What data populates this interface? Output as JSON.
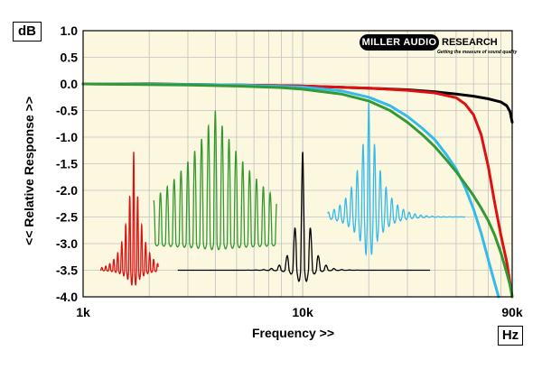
{
  "chart_data": {
    "type": "line",
    "title": "",
    "xlabel": "Frequency >>",
    "ylabel": "<< Relative Response >>",
    "x_unit": "Hz",
    "y_unit": "dB",
    "x_scale": "log",
    "xlim": [
      1000,
      90000
    ],
    "ylim": [
      -4.0,
      1.0
    ],
    "x_ticks": [
      {
        "value": 1000,
        "label": "1k"
      },
      {
        "value": 10000,
        "label": "10k"
      },
      {
        "value": 90000,
        "label": "90k"
      }
    ],
    "y_ticks": [
      {
        "value": 1.0,
        "label": "1.0"
      },
      {
        "value": 0.5,
        "label": "0.5"
      },
      {
        "value": 0.0,
        "label": "0.0"
      },
      {
        "value": -0.5,
        "label": "-0.5"
      },
      {
        "value": -1.0,
        "label": "-1.0"
      },
      {
        "value": -1.5,
        "label": "-1.5"
      },
      {
        "value": -2.0,
        "label": "-2.0"
      },
      {
        "value": -2.5,
        "label": "-2.5"
      },
      {
        "value": -3.0,
        "label": "-3.0"
      },
      {
        "value": -3.5,
        "label": "-3.5"
      },
      {
        "value": -4.0,
        "label": "-4.0"
      }
    ],
    "grid": true,
    "background_color": "#fcf8e0",
    "grid_color": "#c0c0c0",
    "series": [
      {
        "color": "#000000",
        "points": [
          [
            1000,
            0.0
          ],
          [
            2000,
            0.0
          ],
          [
            5000,
            -0.02
          ],
          [
            10000,
            -0.04
          ],
          [
            20000,
            -0.08
          ],
          [
            30000,
            -0.11
          ],
          [
            40000,
            -0.15
          ],
          [
            50000,
            -0.19
          ],
          [
            60000,
            -0.23
          ],
          [
            70000,
            -0.28
          ],
          [
            80000,
            -0.34
          ],
          [
            85000,
            -0.41
          ],
          [
            88000,
            -0.52
          ],
          [
            90000,
            -0.72
          ]
        ]
      },
      {
        "color": "#dd1111",
        "points": [
          [
            1000,
            0.0
          ],
          [
            5000,
            -0.02
          ],
          [
            10000,
            -0.04
          ],
          [
            20000,
            -0.08
          ],
          [
            30000,
            -0.12
          ],
          [
            40000,
            -0.17
          ],
          [
            50000,
            -0.26
          ],
          [
            55000,
            -0.38
          ],
          [
            60000,
            -0.58
          ],
          [
            65000,
            -0.95
          ],
          [
            70000,
            -1.55
          ],
          [
            75000,
            -2.25
          ],
          [
            80000,
            -2.85
          ],
          [
            85000,
            -3.35
          ],
          [
            90000,
            -4.0
          ]
        ]
      },
      {
        "color": "#33bbee",
        "points": [
          [
            1000,
            0.0
          ],
          [
            3000,
            -0.01
          ],
          [
            5000,
            -0.02
          ],
          [
            10000,
            -0.06
          ],
          [
            15000,
            -0.13
          ],
          [
            20000,
            -0.25
          ],
          [
            25000,
            -0.41
          ],
          [
            30000,
            -0.61
          ],
          [
            35000,
            -0.83
          ],
          [
            40000,
            -1.05
          ],
          [
            45000,
            -1.32
          ],
          [
            50000,
            -1.6
          ],
          [
            55000,
            -1.95
          ],
          [
            60000,
            -2.35
          ],
          [
            65000,
            -2.8
          ],
          [
            70000,
            -3.3
          ],
          [
            75000,
            -3.75
          ],
          [
            78000,
            -4.0
          ]
        ]
      },
      {
        "color": "#339933",
        "points": [
          [
            1000,
            0.0
          ],
          [
            3000,
            -0.02
          ],
          [
            5000,
            -0.04
          ],
          [
            8000,
            -0.07
          ],
          [
            10000,
            -0.1
          ],
          [
            15000,
            -0.19
          ],
          [
            20000,
            -0.32
          ],
          [
            25000,
            -0.5
          ],
          [
            30000,
            -0.72
          ],
          [
            35000,
            -0.95
          ],
          [
            40000,
            -1.18
          ],
          [
            45000,
            -1.42
          ],
          [
            50000,
            -1.65
          ],
          [
            55000,
            -1.88
          ],
          [
            60000,
            -2.1
          ],
          [
            65000,
            -2.33
          ],
          [
            70000,
            -2.57
          ],
          [
            75000,
            -2.85
          ],
          [
            80000,
            -3.18
          ],
          [
            85000,
            -3.55
          ],
          [
            88000,
            -3.78
          ],
          [
            90000,
            -4.0
          ]
        ]
      }
    ],
    "impulse_insets": [
      {
        "color": "#dd1111",
        "x_start": 1200,
        "x_end": 2200,
        "x_peak": 1700,
        "baseline": -3.5,
        "peak": -1.27,
        "trough": -3.85,
        "decay": 0.55,
        "cycles_per_decade": 55,
        "sign": 1
      },
      {
        "color": "#339933",
        "x_start": 2100,
        "x_end": 7600,
        "x_peak": 4000,
        "baseline": -3.0,
        "peak": -0.5,
        "trough": -3.12,
        "decay": 5.5,
        "cycles_per_decade": 32,
        "sign": 1
      },
      {
        "color": "#000000",
        "x_start": 2700,
        "x_end": 38000,
        "x_peak": 10000,
        "baseline": -3.5,
        "peak": -1.22,
        "trough": -3.85,
        "decay": 0.45,
        "cycles_per_decade": 28,
        "sign": 1
      },
      {
        "color": "#33bbee",
        "x_start": 13000,
        "x_end": 55000,
        "x_peak": 20000,
        "baseline": -2.5,
        "peak": -0.35,
        "trough": -3.38,
        "decay": 1.0,
        "cycles_per_decade": 38,
        "sign": 1
      }
    ]
  },
  "brand": {
    "logo_black": "MILLER AUDIO",
    "logo_rest": "RESEARCH",
    "tagline": "Getting the measure of sound quality"
  }
}
